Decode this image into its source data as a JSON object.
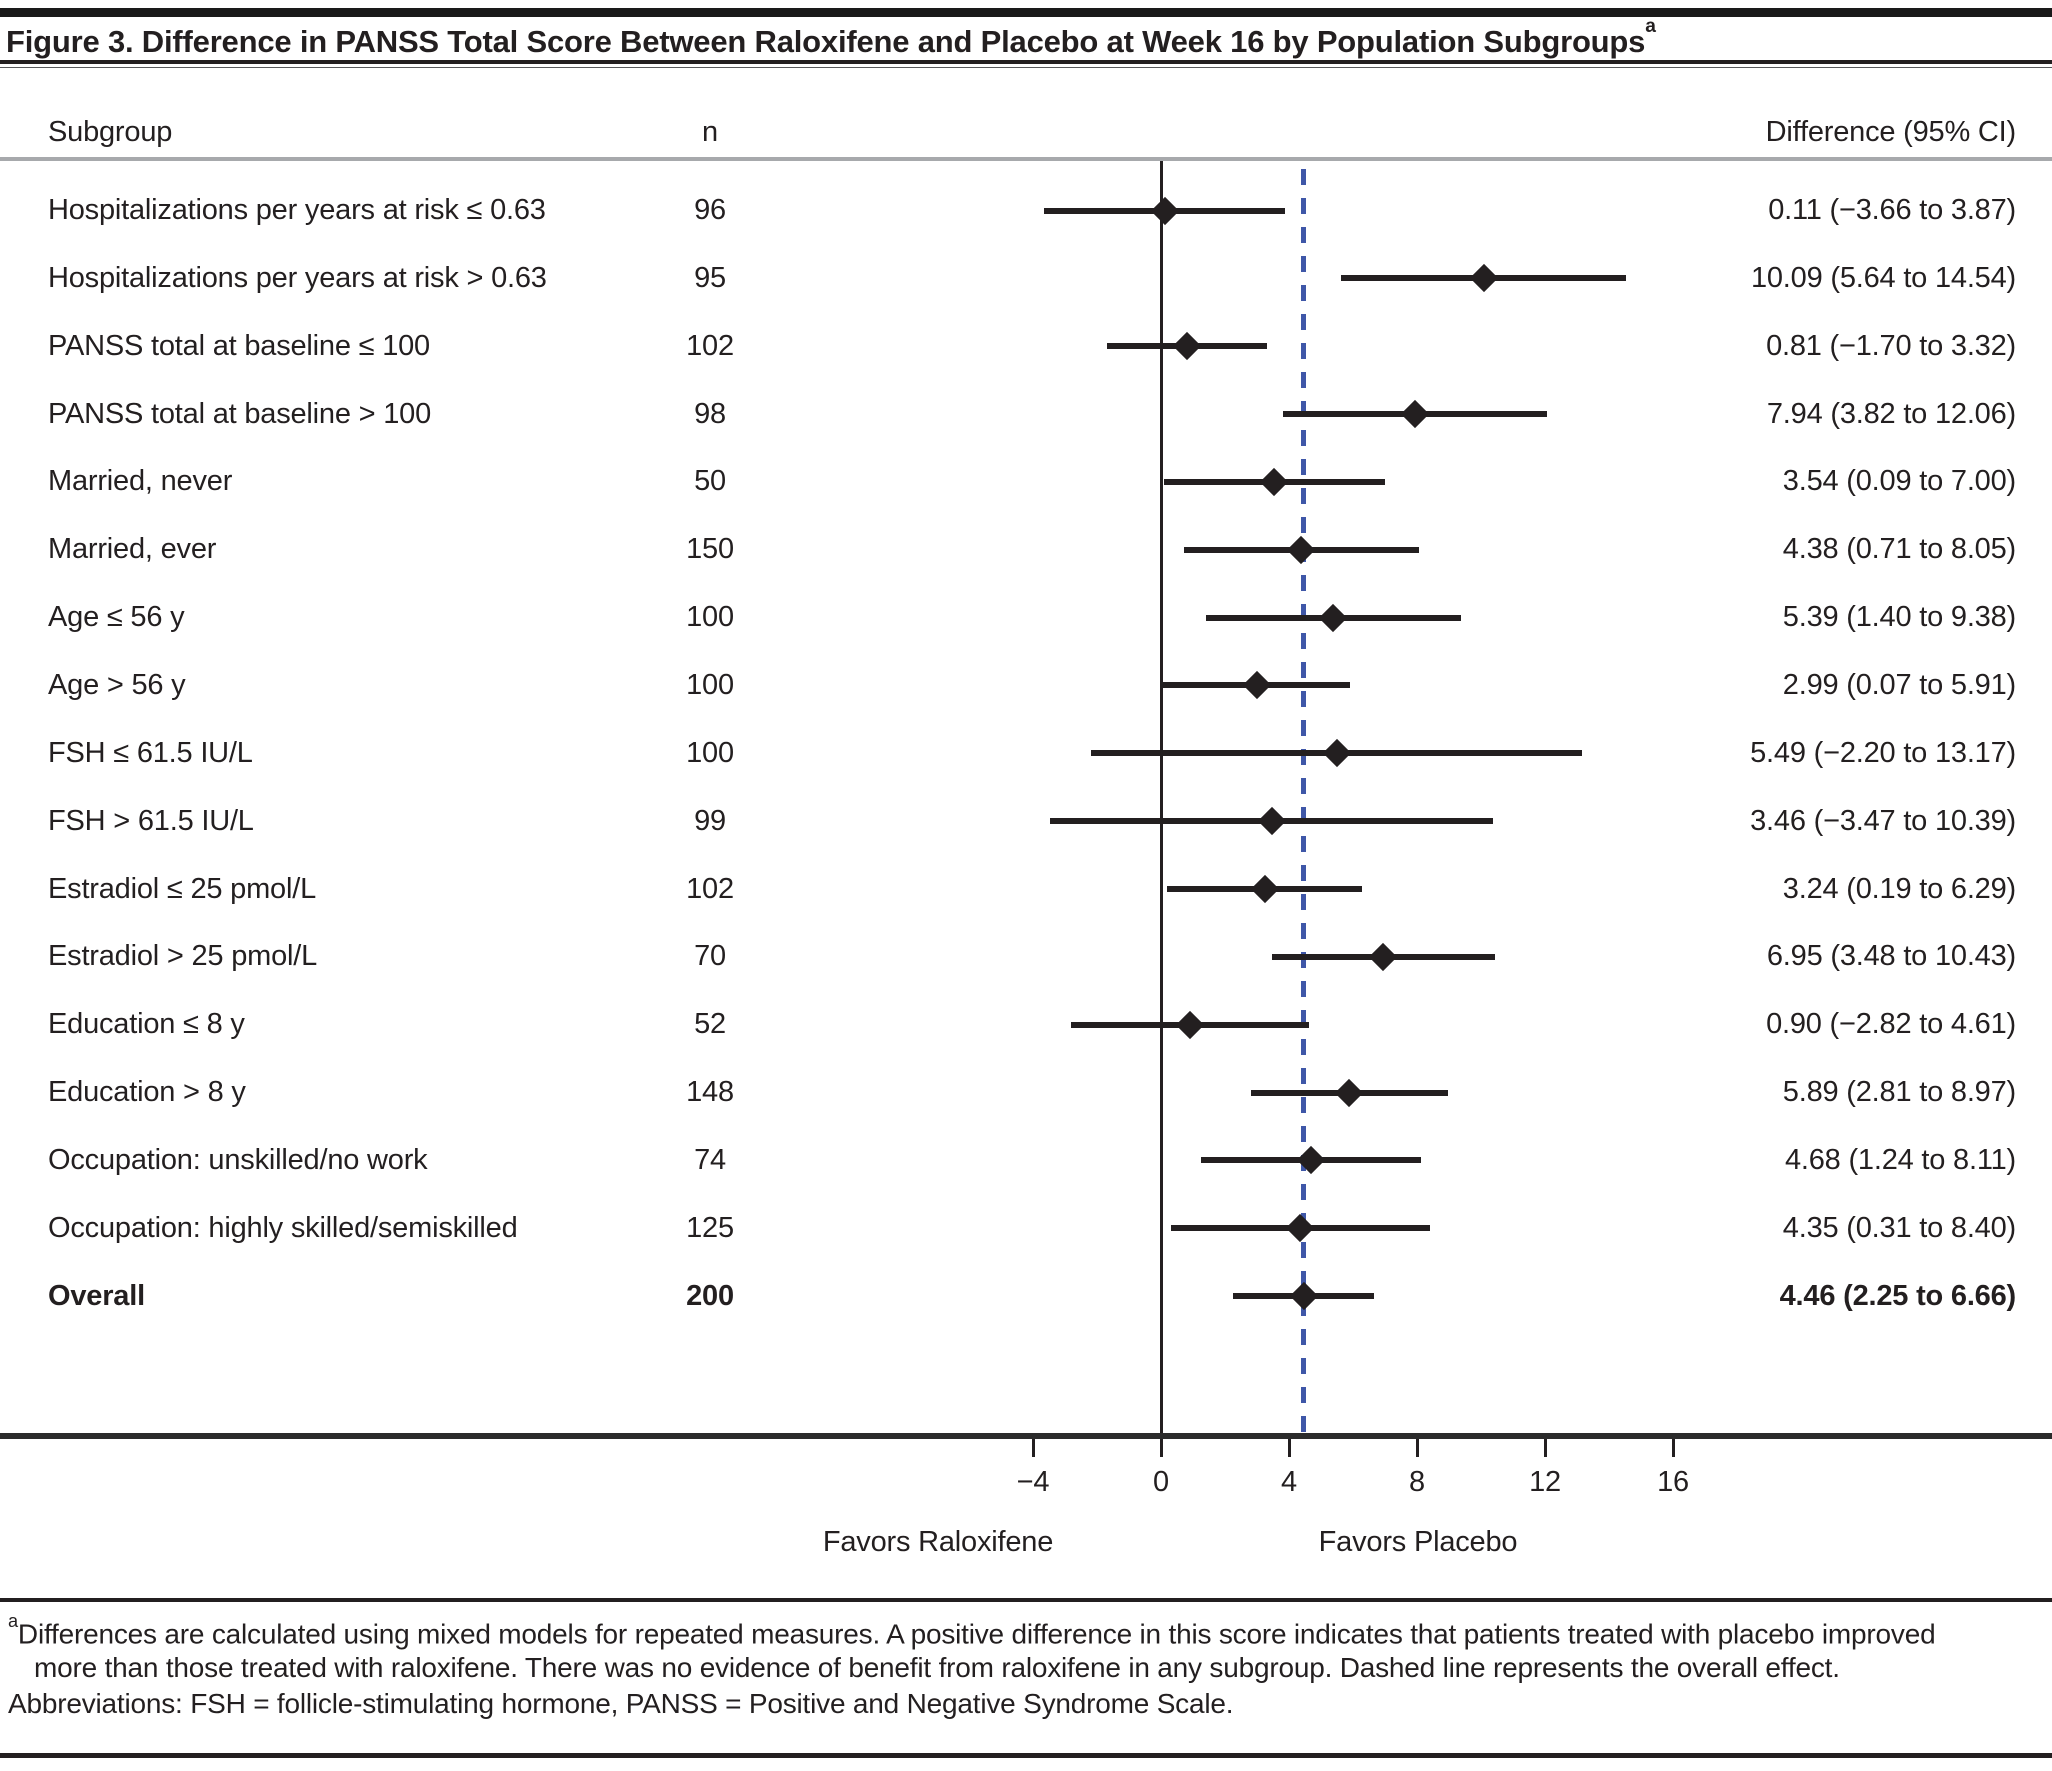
{
  "figure": {
    "title": "Figure 3. Difference in PANSS Total Score Between Raloxifene and Placebo at Week 16 by Population Subgroups",
    "title_sup": "a"
  },
  "chart_data": {
    "type": "forest",
    "title": "Difference in PANSS Total Score Between Raloxifene and Placebo at Week 16 by Population Subgroups",
    "columns": [
      "Subgroup",
      "n",
      "Difference (95% CI)"
    ],
    "x_ticks": [
      -4,
      0,
      4,
      8,
      12,
      16
    ],
    "x_tick_labels": [
      "−4",
      "0",
      "4",
      "8",
      "12",
      "16"
    ],
    "x_range": [
      -6.5,
      18
    ],
    "reference_line_x": 0,
    "overall_effect_line_x": 4.46,
    "favors_left": "Favors Raloxifene",
    "favors_right": "Favors Placebo",
    "rows": [
      {
        "label": "Hospitalizations per years at risk ≤ 0.63",
        "n": "96",
        "estimate": 0.11,
        "ci_low": -3.66,
        "ci_high": 3.87,
        "ci_text": "0.11 (−3.66 to 3.87)",
        "bold": false
      },
      {
        "label": "Hospitalizations per years at risk > 0.63",
        "n": "95",
        "estimate": 10.09,
        "ci_low": 5.64,
        "ci_high": 14.54,
        "ci_text": "10.09 (5.64 to 14.54)",
        "bold": false
      },
      {
        "label": "PANSS total at baseline ≤ 100",
        "n": "102",
        "estimate": 0.81,
        "ci_low": -1.7,
        "ci_high": 3.32,
        "ci_text": "0.81 (−1.70 to 3.32)",
        "bold": false
      },
      {
        "label": "PANSS total at baseline > 100",
        "n": "98",
        "estimate": 7.94,
        "ci_low": 3.82,
        "ci_high": 12.06,
        "ci_text": "7.94 (3.82 to 12.06)",
        "bold": false
      },
      {
        "label": "Married, never",
        "n": "50",
        "estimate": 3.54,
        "ci_low": 0.09,
        "ci_high": 7.0,
        "ci_text": "3.54 (0.09 to 7.00)",
        "bold": false
      },
      {
        "label": "Married, ever",
        "n": "150",
        "estimate": 4.38,
        "ci_low": 0.71,
        "ci_high": 8.05,
        "ci_text": "4.38 (0.71 to 8.05)",
        "bold": false
      },
      {
        "label": "Age ≤ 56 y",
        "n": "100",
        "estimate": 5.39,
        "ci_low": 1.4,
        "ci_high": 9.38,
        "ci_text": "5.39 (1.40 to 9.38)",
        "bold": false
      },
      {
        "label": "Age > 56 y",
        "n": "100",
        "estimate": 2.99,
        "ci_low": 0.07,
        "ci_high": 5.91,
        "ci_text": "2.99 (0.07 to 5.91)",
        "bold": false
      },
      {
        "label": "FSH ≤ 61.5 IU/L",
        "n": "100",
        "estimate": 5.49,
        "ci_low": -2.2,
        "ci_high": 13.17,
        "ci_text": "5.49 (−2.20 to 13.17)",
        "bold": false
      },
      {
        "label": "FSH > 61.5 IU/L",
        "n": "99",
        "estimate": 3.46,
        "ci_low": -3.47,
        "ci_high": 10.39,
        "ci_text": "3.46 (−3.47 to 10.39)",
        "bold": false
      },
      {
        "label": "Estradiol ≤ 25 pmol/L",
        "n": "102",
        "estimate": 3.24,
        "ci_low": 0.19,
        "ci_high": 6.29,
        "ci_text": "3.24 (0.19 to 6.29)",
        "bold": false
      },
      {
        "label": "Estradiol > 25 pmol/L",
        "n": "70",
        "estimate": 6.95,
        "ci_low": 3.48,
        "ci_high": 10.43,
        "ci_text": "6.95 (3.48 to 10.43)",
        "bold": false
      },
      {
        "label": "Education ≤ 8 y",
        "n": "52",
        "estimate": 0.9,
        "ci_low": -2.82,
        "ci_high": 4.61,
        "ci_text": "0.90 (−2.82 to 4.61)",
        "bold": false
      },
      {
        "label": "Education > 8 y",
        "n": "148",
        "estimate": 5.89,
        "ci_low": 2.81,
        "ci_high": 8.97,
        "ci_text": "5.89 (2.81 to 8.97)",
        "bold": false
      },
      {
        "label": "Occupation: unskilled/no work",
        "n": "74",
        "estimate": 4.68,
        "ci_low": 1.24,
        "ci_high": 8.11,
        "ci_text": "4.68 (1.24 to 8.11)",
        "bold": false
      },
      {
        "label": "Occupation: highly skilled/semiskilled",
        "n": "125",
        "estimate": 4.35,
        "ci_low": 0.31,
        "ci_high": 8.4,
        "ci_text": "4.35 (0.31 to 8.40)",
        "bold": false
      },
      {
        "label": "Overall",
        "n": "200",
        "estimate": 4.46,
        "ci_low": 2.25,
        "ci_high": 6.66,
        "ci_text": "4.46 (2.25 to 6.66)",
        "bold": true
      }
    ]
  },
  "footnotes": {
    "sup": "a",
    "text": "Differences are calculated using mixed models for repeated measures. A positive difference in this score indicates that patients treated with placebo improved more than those treated with raloxifene. There was no evidence of benefit from raloxifene in any subgroup. Dashed line represents the overall effect.",
    "abbreviations": "Abbreviations: FSH = follicle-stimulating hormone, PANSS = Positive and Negative Syndrome Scale."
  },
  "colors": {
    "text": "#231f20",
    "marker": "#231f20",
    "overall_dashed_line": "#3f57a8",
    "header_rule": "#a7a9ac"
  }
}
